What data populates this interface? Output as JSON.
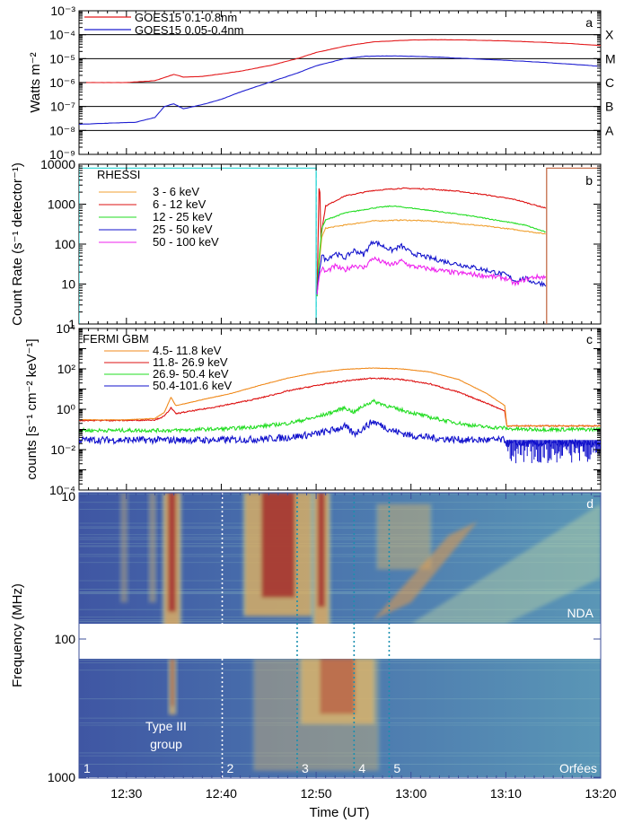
{
  "figure": {
    "x_axis": {
      "label": "Time (UT)",
      "ticks": [
        "12:30",
        "12:40",
        "12:50",
        "13:00",
        "13:10",
        "13:20"
      ],
      "tick_minutes": [
        30,
        40,
        50,
        60,
        70,
        80
      ],
      "range_minutes": [
        25,
        80
      ]
    }
  },
  "chart_data": [
    {
      "panel": "a",
      "type": "line",
      "ylabel": "Watts m⁻²",
      "yscale": "log",
      "ylim": [
        1e-09,
        0.001
      ],
      "y_ticks": [
        "10⁻³",
        "10⁻⁴",
        "10⁻⁵",
        "10⁻⁶",
        "10⁻⁷",
        "10⁻⁸",
        "10⁻⁹"
      ],
      "y_tick_values": [
        0.001,
        0.0001,
        1e-05,
        1e-06,
        1e-07,
        1e-08,
        1e-09
      ],
      "flare_classes": [
        {
          "label": "X",
          "level": 0.0001
        },
        {
          "label": "M",
          "level": 1e-05
        },
        {
          "label": "C",
          "level": 1e-06
        },
        {
          "label": "B",
          "level": 1e-07
        },
        {
          "label": "A",
          "level": 1e-08
        }
      ],
      "series": [
        {
          "name": "GOES15 0.1-0.8nm",
          "color": "#e31a1c",
          "x": [
            25,
            30,
            33,
            35,
            36,
            38,
            40,
            42,
            45,
            48,
            50,
            53,
            56,
            60,
            63,
            66,
            70,
            74,
            77,
            80
          ],
          "y": [
            1e-06,
            1e-06,
            1.2e-06,
            2.2e-06,
            1.7e-06,
            1.8e-06,
            2.3e-06,
            3e-06,
            5e-06,
            1e-05,
            1.8e-05,
            3.3e-05,
            5e-05,
            6e-05,
            6.2e-05,
            6e-05,
            5.5e-05,
            4.8e-05,
            4.2e-05,
            3.5e-05
          ]
        },
        {
          "name": "GOES15 0.05-0.4nm",
          "color": "#1f1fd1",
          "x": [
            25,
            28,
            31,
            33,
            34,
            35,
            36,
            38,
            40,
            42,
            45,
            48,
            50,
            53,
            55,
            58,
            60,
            63,
            66,
            70,
            74,
            77,
            80
          ],
          "y": [
            1.8e-08,
            2e-08,
            2.2e-08,
            3.5e-08,
            1e-07,
            1.3e-07,
            8e-08,
            1.2e-07,
            2e-07,
            4e-07,
            1e-06,
            2.5e-06,
            5e-06,
            1e-05,
            1.25e-05,
            1.3e-05,
            1.25e-05,
            1.15e-05,
            1e-05,
            8.5e-06,
            7e-06,
            5.8e-06,
            4.8e-06
          ]
        }
      ]
    },
    {
      "panel": "b",
      "type": "line",
      "ylabel": "Count Rate (s⁻¹ detector⁻¹)",
      "yscale": "log",
      "ylim": [
        1,
        10000
      ],
      "y_ticks": [
        "10000",
        "1000",
        "100",
        "10",
        "1"
      ],
      "y_tick_values": [
        10000,
        1000,
        100,
        10,
        1
      ],
      "legend_title": "RHESSI",
      "marker_lines": [
        {
          "color": "#27d4d4",
          "x": [
            25,
            25,
            50,
            50
          ],
          "y": [
            1,
            8000,
            8000,
            1
          ]
        },
        {
          "color": "#c0603a",
          "x": [
            74.3,
            74.3,
            80
          ],
          "y": [
            1,
            8000,
            8000
          ]
        }
      ],
      "series": [
        {
          "name": "3 - 6 keV",
          "color": "#f0a030",
          "x": [
            50.1,
            50.3,
            50.6,
            51,
            53,
            56,
            59,
            62,
            65,
            68,
            71,
            74.2
          ],
          "y": [
            6,
            30,
            150,
            250,
            300,
            380,
            400,
            380,
            330,
            280,
            230,
            180
          ]
        },
        {
          "name": "6 - 12 keV",
          "color": "#dd1111",
          "x": [
            50.1,
            50.3,
            50.4,
            50.5,
            51,
            53,
            56,
            59,
            62,
            65,
            68,
            71,
            74.2
          ],
          "y": [
            5,
            2500,
            2000,
            150,
            900,
            1600,
            2200,
            2500,
            2400,
            2100,
            1700,
            1300,
            800
          ]
        },
        {
          "name": "12 - 25 keV",
          "color": "#22dd22",
          "x": [
            50.1,
            50.3,
            50.6,
            51,
            53,
            56,
            58,
            60,
            63,
            66,
            69,
            72,
            74.2
          ],
          "y": [
            5,
            40,
            250,
            400,
            600,
            800,
            900,
            800,
            650,
            520,
            400,
            300,
            200
          ]
        },
        {
          "name": "25 - 50 keV",
          "color": "#1111cc",
          "x": [
            50.1,
            50.3,
            50.6,
            51,
            52,
            53,
            54,
            55,
            56,
            57,
            58,
            59,
            60,
            62,
            64,
            66,
            68,
            70,
            71,
            72,
            73,
            74.2
          ],
          "y": [
            5,
            20,
            55,
            40,
            60,
            45,
            70,
            55,
            120,
            90,
            70,
            90,
            60,
            45,
            35,
            28,
            22,
            17,
            12,
            14,
            11,
            10
          ]
        },
        {
          "name": "50 - 100 keV",
          "color": "#ee22ee",
          "x": [
            50.1,
            50.3,
            50.6,
            51,
            52,
            53,
            54,
            55,
            56,
            57,
            58,
            59,
            60,
            62,
            64,
            66,
            68,
            70,
            71,
            72,
            73,
            74.2
          ],
          "y": [
            5,
            15,
            25,
            20,
            28,
            22,
            30,
            25,
            45,
            35,
            30,
            38,
            28,
            24,
            20,
            18,
            16,
            14,
            10,
            13,
            15,
            15
          ]
        }
      ]
    },
    {
      "panel": "c",
      "type": "line",
      "ylabel": "counts [s⁻¹ cm⁻² keV⁻¹]",
      "yscale": "log",
      "ylim": [
        0.0001,
        10000.0
      ],
      "y_ticks": [
        "10⁴",
        "10²",
        "10⁰",
        "10⁻²",
        "10⁻⁴"
      ],
      "y_tick_values": [
        10000.0,
        100.0,
        1.0,
        0.01,
        0.0001
      ],
      "legend_title": "FERMI GBM",
      "series": [
        {
          "name": "4.5- 11.8 keV",
          "color": "#f08a1c",
          "x": [
            25,
            30,
            33,
            34,
            34.7,
            35.2,
            36,
            38,
            41,
            44,
            47,
            50,
            53,
            56,
            59,
            62,
            65,
            68,
            69.9,
            70.1,
            72,
            75,
            80
          ],
          "y": [
            0.3,
            0.3,
            0.35,
            0.7,
            4.0,
            1.5,
            1.8,
            3.0,
            6,
            15,
            35,
            65,
            95,
            110,
            100,
            70,
            30,
            6,
            1.5,
            0.15,
            0.15,
            0.15,
            0.15
          ]
        },
        {
          "name": "11.8- 26.9 keV",
          "color": "#dd1111",
          "x": [
            25,
            30,
            33,
            34,
            34.7,
            35.2,
            36,
            38,
            41,
            44,
            47,
            50,
            53,
            56,
            59,
            62,
            65,
            68,
            69.9,
            70.1,
            72,
            75,
            80
          ],
          "y": [
            0.28,
            0.28,
            0.3,
            0.45,
            1.2,
            0.6,
            0.7,
            1.0,
            1.8,
            3.5,
            8,
            15,
            25,
            35,
            30,
            18,
            7,
            2,
            0.8,
            0.15,
            0.15,
            0.15,
            0.15
          ]
        },
        {
          "name": "26.9- 50.4 keV",
          "color": "#22dd22",
          "x": [
            25,
            30,
            35,
            38,
            41,
            44,
            47,
            50,
            52,
            53,
            54,
            55,
            56,
            57,
            58,
            60,
            62,
            64,
            66,
            68,
            69.9,
            70.1,
            72,
            75,
            80
          ],
          "y": [
            0.09,
            0.09,
            0.09,
            0.1,
            0.11,
            0.14,
            0.2,
            0.4,
            0.8,
            1.2,
            0.7,
            1.5,
            2.5,
            1.8,
            1.2,
            0.7,
            0.4,
            0.25,
            0.17,
            0.13,
            0.12,
            0.11,
            0.1,
            0.1,
            0.1
          ]
        },
        {
          "name": "50.4-101.6 keV",
          "color": "#1111cc",
          "x": [
            25,
            30,
            35,
            40,
            44,
            47,
            50,
            52,
            53,
            54,
            55,
            56,
            57,
            58,
            60,
            63,
            66,
            69.9,
            70.1,
            80
          ],
          "y": [
            0.03,
            0.03,
            0.03,
            0.03,
            0.033,
            0.04,
            0.06,
            0.1,
            0.14,
            0.06,
            0.12,
            0.25,
            0.15,
            0.09,
            0.05,
            0.035,
            0.03,
            0.03,
            0.02,
            0.02
          ]
        }
      ]
    },
    {
      "panel": "d",
      "type": "heatmap",
      "ylabel": "Frequency (MHz)",
      "yscale": "log",
      "ylim": [
        1000,
        10
      ],
      "y_ticks": [
        "10",
        "100",
        "1000"
      ],
      "y_tick_values": [
        10,
        100,
        1000
      ],
      "instruments": [
        {
          "name": "NDA",
          "freq_range": [
            10,
            85
          ]
        },
        {
          "name": "Orfées",
          "freq_range": [
            145,
            1000
          ]
        }
      ],
      "annotations": [
        "Type III",
        "group"
      ],
      "event_markers": [
        {
          "label": "1",
          "x": 25
        },
        {
          "label": "2",
          "x": 40.1
        },
        {
          "label": "3",
          "x": 48
        },
        {
          "label": "4",
          "x": 54
        },
        {
          "label": "5",
          "x": 57.7
        }
      ],
      "bursts": [
        {
          "t0": 34.0,
          "t1": 35.6,
          "fmin": 10,
          "fmax": 110,
          "intensity": 1.0
        },
        {
          "t0": 34.6,
          "t1": 35.1,
          "fmin": 145,
          "fmax": 360,
          "intensity": 0.9
        },
        {
          "t0": 29.5,
          "t1": 30.0,
          "fmin": 10,
          "fmax": 60,
          "intensity": 0.4
        },
        {
          "t0": 32.5,
          "t1": 33.0,
          "fmin": 10,
          "fmax": 60,
          "intensity": 0.45
        },
        {
          "t0": 42.5,
          "t1": 49.5,
          "fmin": 10,
          "fmax": 75,
          "intensity": 0.95
        },
        {
          "t0": 49.8,
          "t1": 51.3,
          "fmin": 10,
          "fmax": 90,
          "intensity": 1.0
        },
        {
          "t0": 48.5,
          "t1": 56.0,
          "fmin": 145,
          "fmax": 420,
          "intensity": 0.85
        },
        {
          "t0": 43.5,
          "t1": 56.5,
          "fmin": 145,
          "fmax": 900,
          "intensity": 0.4
        },
        {
          "t0": 56.5,
          "t1": 62.0,
          "fmin": 12,
          "fmax": 35,
          "intensity": 0.45
        }
      ]
    }
  ],
  "panel_labels": [
    "a",
    "b",
    "c",
    "d"
  ]
}
